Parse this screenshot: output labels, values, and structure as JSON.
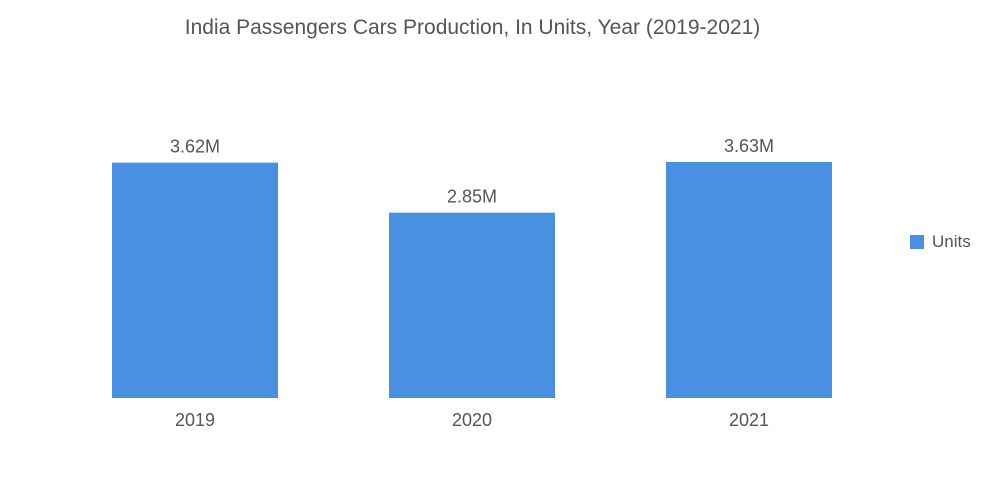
{
  "chart_data": {
    "type": "bar",
    "title": "India Passengers Cars Production, In Units,  Year (2019-2021)",
    "categories": [
      "2019",
      "2020",
      "2021"
    ],
    "series": [
      {
        "name": "Units",
        "values": [
          3620000,
          2850000,
          3630000
        ],
        "labels": [
          "3.62M",
          "2.85M",
          "3.63M"
        ]
      }
    ],
    "xlabel": "",
    "ylabel": "",
    "ylim": [
      0,
      3630000
    ],
    "grid": false,
    "legend_position": "right",
    "colors": {
      "bar": "#4a90e2",
      "text": "#555555"
    }
  }
}
